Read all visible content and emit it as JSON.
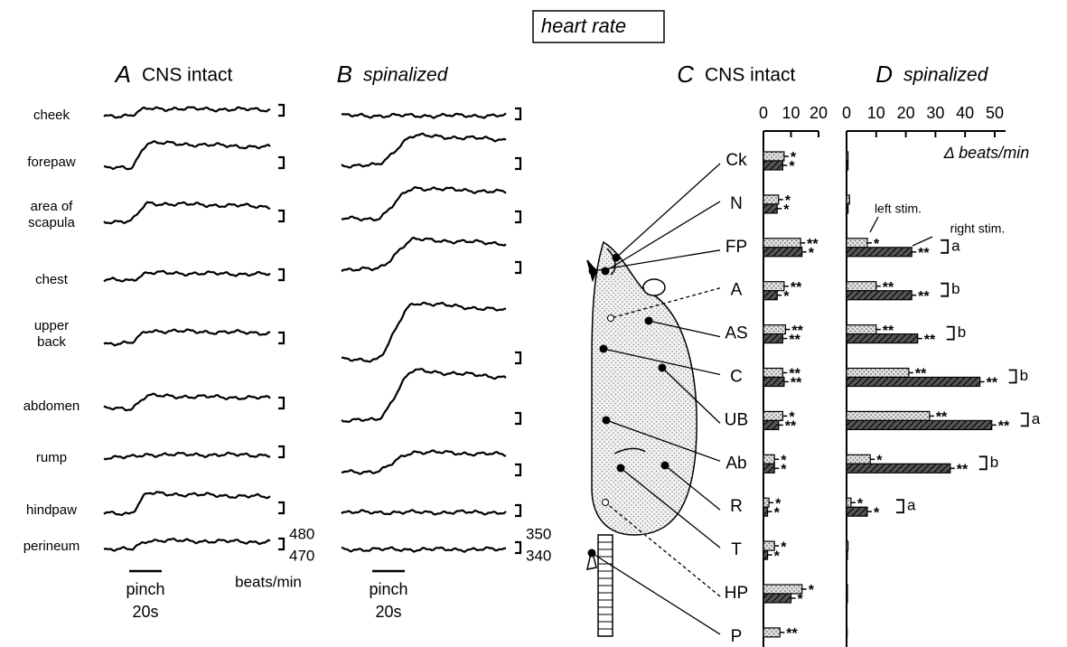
{
  "title": "heart rate",
  "panels": [
    {
      "letter": "A",
      "title": "CNS intact",
      "sites": [
        "cheek",
        "forepaw",
        "area of\nscapula",
        "chest",
        "upper\nback",
        "abdomen",
        "rump",
        "hindpaw",
        "perineum"
      ],
      "scale": {
        "top": "480",
        "bottom": "470",
        "unit": "beats/min"
      },
      "stimulus": {
        "label": "pinch",
        "duration": "20s"
      }
    },
    {
      "letter": "B",
      "title": "spinalized",
      "scale": {
        "top": "350",
        "bottom": "340"
      },
      "stimulus": {
        "label": "pinch",
        "duration": "20s"
      }
    }
  ],
  "chart_data": [
    {
      "type": "bar",
      "letter": "C",
      "title": "CNS intact",
      "categories": [
        "Ck",
        "N",
        "FP",
        "A",
        "AS",
        "C",
        "UB",
        "Ab",
        "R",
        "T",
        "HP",
        "P"
      ],
      "series": [
        {
          "color": "#e2e2e2",
          "values": [
            7.5,
            5.5,
            13.5,
            7.5,
            8,
            7,
            7,
            4,
            2,
            4,
            14,
            6
          ],
          "significance": [
            "*",
            "*",
            "**",
            "**",
            "**",
            "**",
            "*",
            "*",
            "*",
            "*",
            "*",
            "**"
          ]
        },
        {
          "color": "#555555",
          "values": [
            7,
            5,
            14,
            5,
            7,
            7.5,
            5.5,
            4,
            1.5,
            1.5,
            10,
            null
          ],
          "significance": [
            "*",
            "*",
            "*",
            "*",
            "**",
            "**",
            "**",
            "*",
            "*",
            "*",
            "*",
            null
          ]
        }
      ],
      "xlim": [
        0,
        20
      ],
      "xticks": [
        0,
        10,
        20
      ]
    },
    {
      "type": "bar",
      "letter": "D",
      "title": "spinalized",
      "xlabel": "Δ beats/min",
      "categories": [
        "Ck",
        "N",
        "FP",
        "A",
        "AS",
        "C",
        "UB",
        "Ab",
        "R",
        "T",
        "HP",
        "P"
      ],
      "series": [
        {
          "name": "left stim.",
          "color": "#e2e2e2",
          "values": [
            0.5,
            1,
            7,
            10,
            10,
            21,
            28,
            8,
            1.5,
            0.5,
            0.3,
            0.2
          ],
          "significance": [
            null,
            null,
            "*",
            "**",
            "**",
            "**",
            "**",
            "*",
            "*",
            null,
            null,
            null
          ]
        },
        {
          "name": "right stim.",
          "color": "#555555",
          "values": [
            0.5,
            0.5,
            22,
            22,
            24,
            45,
            49,
            35,
            7,
            0.3,
            0.3,
            null
          ],
          "significance": [
            null,
            null,
            "**",
            "**",
            "**",
            "**",
            "**",
            "**",
            "*",
            null,
            null,
            null
          ]
        }
      ],
      "comparison": [
        null,
        null,
        "a",
        "b",
        "b",
        "b",
        "a",
        "b",
        "a",
        null,
        null,
        null
      ],
      "xlim": [
        0,
        50
      ],
      "xticks": [
        0,
        10,
        20,
        30,
        40,
        50
      ]
    }
  ]
}
